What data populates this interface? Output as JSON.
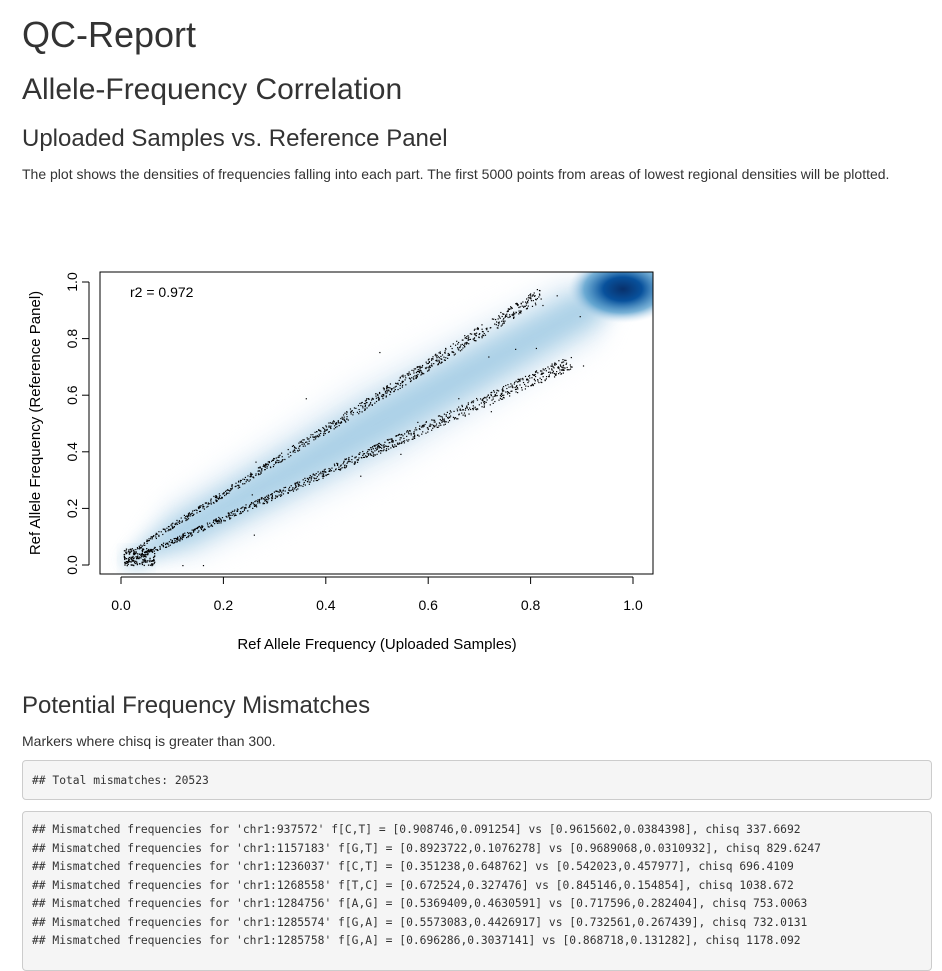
{
  "report_title": "QC-Report",
  "section_title": "Allele-Frequency Correlation",
  "subsection_title": "Uploaded Samples vs. Reference Panel",
  "plot_description": "The plot shows the densities of frequencies falling into each part. The first 5000 points from areas of lowest regional densities will be plotted.",
  "chart_data": {
    "type": "scatter",
    "xlabel": "Ref Allele Frequency (Uploaded Samples)",
    "ylabel": "Ref Allele Frequency (Reference Panel)",
    "xlim": [
      0,
      1
    ],
    "ylim": [
      0,
      1
    ],
    "x_ticks": [
      "0.0",
      "0.2",
      "0.4",
      "0.6",
      "0.8",
      "1.0"
    ],
    "y_ticks": [
      "0.0",
      "0.2",
      "0.4",
      "0.6",
      "0.8",
      "1.0"
    ],
    "annotation": "r2 = 0.972",
    "density_color": "#08519c",
    "point_color": "#000000",
    "point_bands": [
      {
        "x_range": [
          0.02,
          0.82
        ],
        "y_at_start": 0.05,
        "y_at_end": 0.96
      },
      {
        "x_range": [
          0.02,
          0.88
        ],
        "y_at_start": 0.02,
        "y_at_end": 0.72
      }
    ]
  },
  "mismatch_section": {
    "title": "Potential Frequency Mismatches",
    "description": "Markers where chisq is greater than 300.",
    "total_line": "## Total mismatches: 20523",
    "lines": [
      "## Mismatched frequencies for 'chr1:937572' f[C,T] = [0.908746,0.091254] vs [0.9615602,0.0384398], chisq 337.6692",
      "## Mismatched frequencies for 'chr1:1157183' f[G,T] = [0.8923722,0.1076278] vs [0.9689068,0.0310932], chisq 829.6247",
      "## Mismatched frequencies for 'chr1:1236037' f[C,T] = [0.351238,0.648762] vs [0.542023,0.457977], chisq 696.4109",
      "## Mismatched frequencies for 'chr1:1268558' f[T,C] = [0.672524,0.327476] vs [0.845146,0.154854], chisq 1038.672",
      "## Mismatched frequencies for 'chr1:1284756' f[A,G] = [0.5369409,0.4630591] vs [0.717596,0.282404], chisq 753.0063",
      "## Mismatched frequencies for 'chr1:1285574' f[G,A] = [0.5573083,0.4426917] vs [0.732561,0.267439], chisq 732.0131",
      "## Mismatched frequencies for 'chr1:1285758' f[G,A] = [0.696286,0.3037141] vs [0.868718,0.131282], chisq 1178.092"
    ]
  }
}
